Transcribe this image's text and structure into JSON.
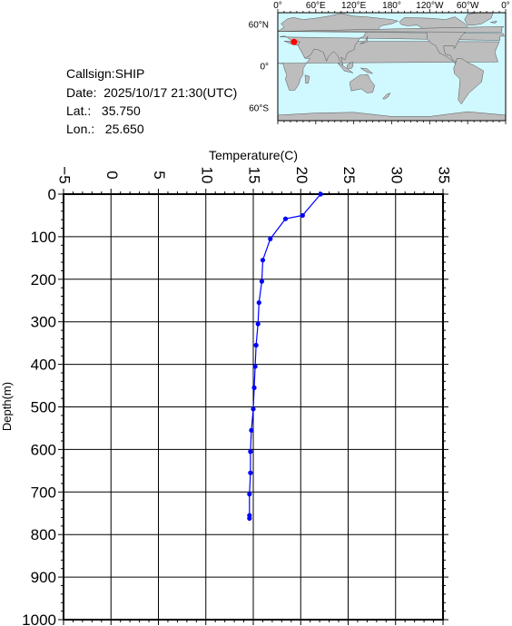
{
  "station": {
    "callsign": "Callsign:SHIP",
    "date": "Date:  2025/10/17 21:30(UTC)",
    "lat": "Lat.:   35.750",
    "lon": "Lon.:   25.650"
  },
  "map": {
    "lon_labels": [
      "0°",
      "60°E",
      "120°E",
      "180°",
      "120°W",
      "60°W",
      "0°"
    ],
    "lat_labels": [
      "60°N",
      "0°",
      "60°S"
    ],
    "ocean_color": "#d0f8ff",
    "land_color": "#bdbdbd",
    "marker_color": "#ff0000",
    "marker": {
      "lon": 25.65,
      "lat": 35.75
    }
  },
  "chart_data": {
    "type": "line",
    "xlabel": "Temperature(C)",
    "ylabel": "Depth(m)",
    "xlim": [
      -5,
      35
    ],
    "ylim": [
      0,
      1000
    ],
    "y_inverted": true,
    "x_ticks": [
      "-5",
      "0",
      "5",
      "10",
      "15",
      "20",
      "25",
      "30",
      "35"
    ],
    "y_ticks": [
      "0",
      "100",
      "200",
      "300",
      "400",
      "500",
      "600",
      "700",
      "800",
      "900",
      "1000"
    ],
    "grid": true,
    "series": [
      {
        "color": "#0000ff",
        "points": [
          [
            22.1,
            0
          ],
          [
            20.2,
            50
          ],
          [
            18.4,
            58
          ],
          [
            16.8,
            105
          ],
          [
            16.0,
            155
          ],
          [
            15.9,
            205
          ],
          [
            15.6,
            255
          ],
          [
            15.5,
            305
          ],
          [
            15.3,
            355
          ],
          [
            15.2,
            405
          ],
          [
            15.1,
            455
          ],
          [
            15.0,
            505
          ],
          [
            14.8,
            555
          ],
          [
            14.7,
            605
          ],
          [
            14.7,
            655
          ],
          [
            14.6,
            705
          ],
          [
            14.6,
            755
          ],
          [
            14.6,
            762
          ]
        ]
      }
    ]
  }
}
